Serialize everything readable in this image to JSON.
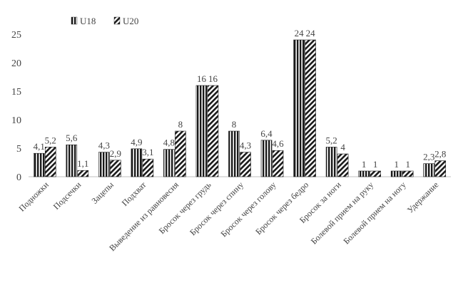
{
  "chart_data": {
    "type": "bar",
    "title": "",
    "xlabel": "",
    "ylabel": "",
    "ylim": [
      0,
      25
    ],
    "yticks": [
      0,
      5,
      10,
      15,
      20,
      25
    ],
    "grid": false,
    "legend_position": "top-left",
    "categories": [
      "Подножки",
      "Подсечки",
      "Зацепы",
      "Подхват",
      "Выведение из равновесия",
      "Бросок через грудь",
      "Бросок через спину",
      "Бросок через голову",
      "Бросок через бедро",
      "Бросок за ноги",
      "Болевой прием на руку",
      "Болевой прием на ногу",
      "Удержание"
    ],
    "series": [
      {
        "name": "U18",
        "pattern": "vertical-stripes",
        "values": [
          4.1,
          5.6,
          4.3,
          4.9,
          4.8,
          16,
          8,
          6.4,
          24,
          5.2,
          1,
          1,
          2.3
        ],
        "labels": [
          "4,1",
          "5,6",
          "4,3",
          "4,9",
          "4,8",
          "16",
          "8",
          "6,4",
          "24",
          "5,2",
          "1",
          "1",
          "2,3"
        ]
      },
      {
        "name": "U20",
        "pattern": "diagonal-stripes",
        "values": [
          5.2,
          1.1,
          2.9,
          3.1,
          8,
          16,
          4.3,
          4.6,
          24,
          4,
          1,
          1,
          2.8
        ],
        "labels": [
          "5,2",
          "1,1",
          "2,9",
          "3,1",
          "8",
          "16",
          "4,3",
          "4,6",
          "24",
          "4",
          "1",
          "1",
          "2,8"
        ]
      }
    ],
    "colors": {
      "bar": "#1a1a1a",
      "text": "#444444",
      "axis": "#bfbfbf"
    }
  }
}
